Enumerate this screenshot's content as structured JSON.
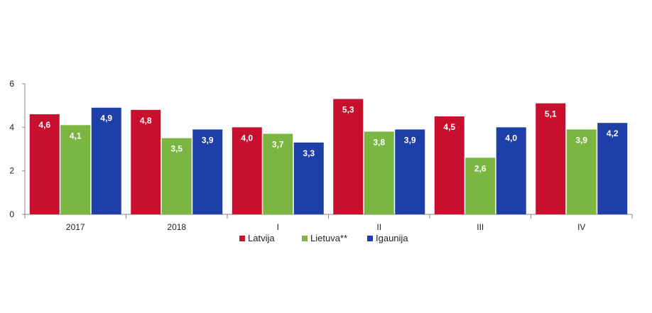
{
  "chart_data": {
    "type": "bar",
    "categories": [
      "2017",
      "2018",
      "I",
      "II",
      "III",
      "IV"
    ],
    "series": [
      {
        "name": "Latvija",
        "color": "#c8102e",
        "values": [
          4.6,
          4.8,
          4.0,
          5.3,
          4.5,
          5.1
        ],
        "labels": [
          "4,6",
          "4,8",
          "4,0",
          "5,3",
          "4,5",
          "5,1"
        ]
      },
      {
        "name": "Lietuva**",
        "color": "#7ab641",
        "values": [
          4.1,
          3.5,
          3.7,
          3.8,
          2.6,
          3.9
        ],
        "labels": [
          "4,1",
          "3,5",
          "3,7",
          "3,8",
          "2,6",
          "3,9"
        ]
      },
      {
        "name": "Igaunija",
        "color": "#1f3fa8",
        "values": [
          4.9,
          3.9,
          3.3,
          3.9,
          4.0,
          4.2
        ],
        "labels": [
          "4,9",
          "3,9",
          "3,3",
          "3,9",
          "4,0",
          "4,2"
        ]
      }
    ],
    "ylim": [
      0,
      6
    ],
    "yticks": [
      0,
      2,
      4,
      6
    ],
    "grid": false,
    "legend": "bottom-center"
  }
}
